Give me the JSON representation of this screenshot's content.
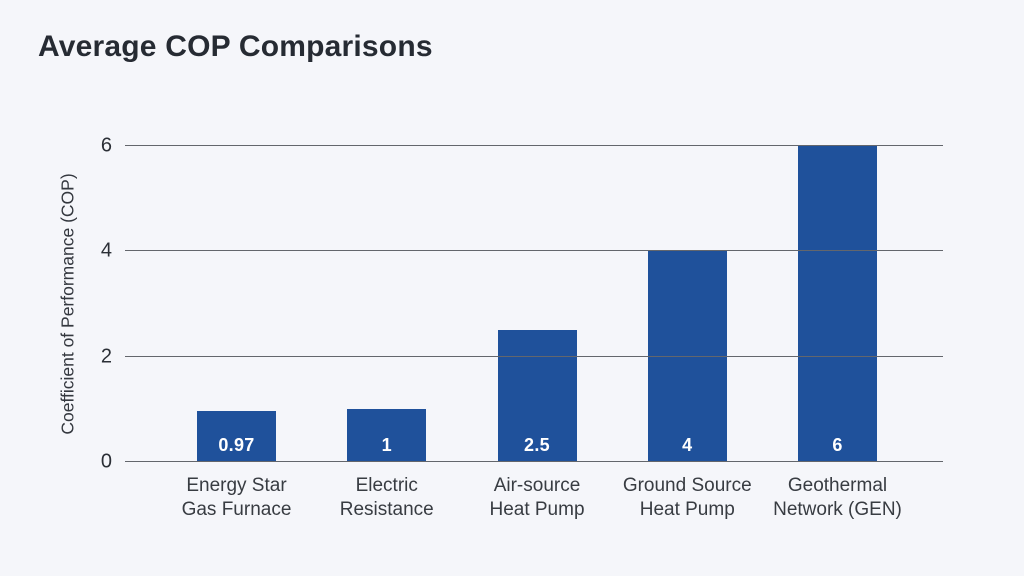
{
  "page": {
    "background_color": "#f5f6fa"
  },
  "chart_data": {
    "type": "bar",
    "title": "Average COP Comparisons",
    "xlabel": "",
    "ylabel": "Coefficient of Performance (COP)",
    "categories": [
      "Energy Star\nGas Furnace",
      "Electric\nResistance",
      "Air-source\nHeat Pump",
      "Ground Source\nHeat Pump",
      "Geothermal\nNetwork (GEN)"
    ],
    "values": [
      0.97,
      1,
      2.5,
      4,
      6
    ],
    "value_labels": [
      "0.97",
      "1",
      "2.5",
      "4",
      "6"
    ],
    "ylim": [
      0,
      6
    ],
    "yticks": [
      0,
      2,
      4,
      6
    ],
    "grid": true,
    "gridlines_over_bars": true,
    "legend": false,
    "bar_color": "#1f519b",
    "value_label_color": "#ffffff",
    "gridline_color": "#63666c",
    "title_color": "#262b33",
    "axis_text_color": "#2b2f36"
  }
}
